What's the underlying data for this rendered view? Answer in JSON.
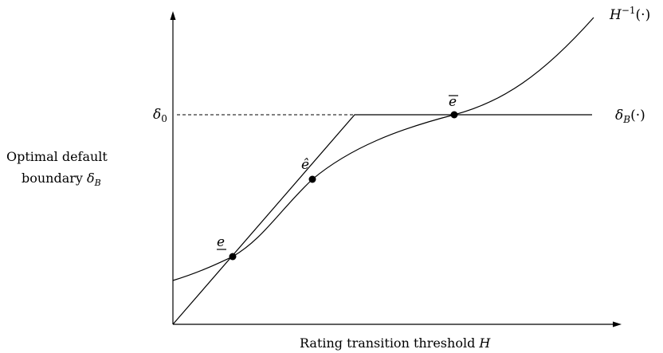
{
  "axes": {
    "y_label_line1": "Optimal default",
    "y_label_line2": "boundary",
    "y_label_symbol": "δ",
    "y_label_sub": "B",
    "x_label": "Rating transition threshold",
    "x_label_symbol": "H"
  },
  "curves": {
    "h_inverse_label": "H",
    "h_inverse_sup": "−1",
    "h_inverse_arg": "(·)",
    "delta_b_symbol": "δ",
    "delta_b_sub": "B",
    "delta_b_arg": "(·)"
  },
  "levels": {
    "delta0_symbol": "δ",
    "delta0_sub": "0"
  },
  "points": {
    "e_low_label": "e",
    "e_hat_label": "ê",
    "e_high_label": "e"
  }
}
